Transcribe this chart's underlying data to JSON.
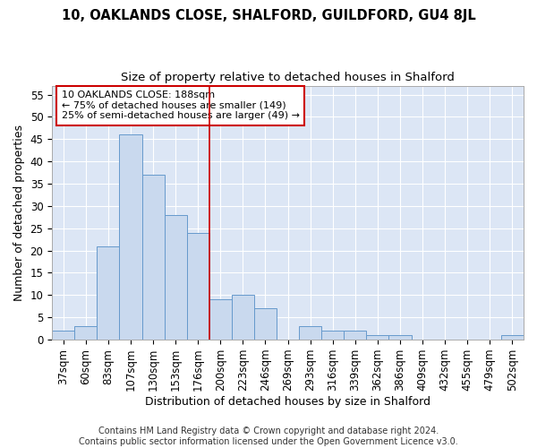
{
  "title": "10, OAKLANDS CLOSE, SHALFORD, GUILDFORD, GU4 8JL",
  "subtitle": "Size of property relative to detached houses in Shalford",
  "xlabel": "Distribution of detached houses by size in Shalford",
  "ylabel": "Number of detached properties",
  "categories": [
    "37sqm",
    "60sqm",
    "83sqm",
    "107sqm",
    "130sqm",
    "153sqm",
    "176sqm",
    "200sqm",
    "223sqm",
    "246sqm",
    "269sqm",
    "293sqm",
    "316sqm",
    "339sqm",
    "362sqm",
    "386sqm",
    "409sqm",
    "432sqm",
    "455sqm",
    "479sqm",
    "502sqm"
  ],
  "values": [
    2,
    3,
    21,
    46,
    37,
    28,
    24,
    9,
    10,
    7,
    0,
    3,
    2,
    2,
    1,
    1,
    0,
    0,
    0,
    0,
    1
  ],
  "bar_color": "#c9d9ee",
  "bar_edge_color": "#6699cc",
  "vline_x": 7.0,
  "vline_color": "#cc0000",
  "annotation_text": "10 OAKLANDS CLOSE: 188sqm\n← 75% of detached houses are smaller (149)\n25% of semi-detached houses are larger (49) →",
  "annotation_box_facecolor": "#ffffff",
  "annotation_box_edgecolor": "#cc0000",
  "footer_line1": "Contains HM Land Registry data © Crown copyright and database right 2024.",
  "footer_line2": "Contains public sector information licensed under the Open Government Licence v3.0.",
  "fig_bg_color": "#ffffff",
  "plot_bg_color": "#dce6f5",
  "ylim": [
    0,
    57
  ],
  "yticks": [
    0,
    5,
    10,
    15,
    20,
    25,
    30,
    35,
    40,
    45,
    50,
    55
  ],
  "title_fontsize": 10.5,
  "subtitle_fontsize": 9.5,
  "xlabel_fontsize": 9,
  "ylabel_fontsize": 9,
  "tick_fontsize": 8.5,
  "annotation_fontsize": 8,
  "footer_fontsize": 7
}
